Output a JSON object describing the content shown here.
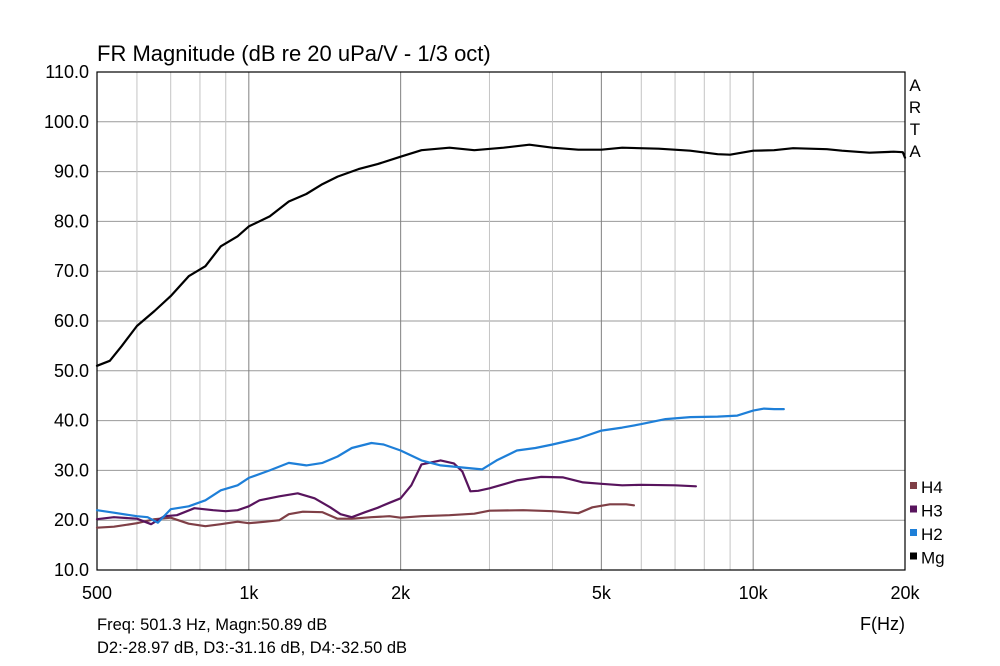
{
  "chart_data": {
    "type": "line",
    "title": "FR Magnitude (dB re 20 uPa/V - 1/3 oct)",
    "xlabel": "F(Hz)",
    "ylabel": "",
    "x_scale": "log",
    "xlim": [
      500,
      20000
    ],
    "ylim": [
      10,
      110
    ],
    "grid": true,
    "legend_position": "right-bottom",
    "brand_letters": [
      "A",
      "R",
      "T",
      "A"
    ],
    "x_ticks": [
      {
        "value": 500,
        "label": "500"
      },
      {
        "value": 1000,
        "label": "1k"
      },
      {
        "value": 2000,
        "label": "2k"
      },
      {
        "value": 5000,
        "label": "5k"
      },
      {
        "value": 10000,
        "label": "10k"
      },
      {
        "value": 20000,
        "label": "20k"
      }
    ],
    "y_ticks": [
      {
        "value": 110,
        "label": "110.0"
      },
      {
        "value": 100,
        "label": "100.0"
      },
      {
        "value": 90,
        "label": "90.0"
      },
      {
        "value": 80,
        "label": "80.0"
      },
      {
        "value": 70,
        "label": "70.0"
      },
      {
        "value": 60,
        "label": "60.0"
      },
      {
        "value": 50,
        "label": "50.0"
      },
      {
        "value": 40,
        "label": "40.0"
      },
      {
        "value": 30,
        "label": "30.0"
      },
      {
        "value": 20,
        "label": "20.0"
      },
      {
        "value": 10,
        "label": "10.0"
      }
    ],
    "series": [
      {
        "name": "Mg",
        "color": "#000000",
        "points": [
          [
            500,
            51
          ],
          [
            530,
            52
          ],
          [
            560,
            55
          ],
          [
            600,
            59
          ],
          [
            650,
            62
          ],
          [
            700,
            65
          ],
          [
            760,
            69
          ],
          [
            820,
            71
          ],
          [
            880,
            75
          ],
          [
            950,
            77
          ],
          [
            1000,
            79
          ],
          [
            1100,
            81
          ],
          [
            1200,
            84
          ],
          [
            1300,
            85.5
          ],
          [
            1400,
            87.5
          ],
          [
            1500,
            89
          ],
          [
            1650,
            90.5
          ],
          [
            1800,
            91.5
          ],
          [
            2000,
            93
          ],
          [
            2200,
            94.3
          ],
          [
            2500,
            94.8
          ],
          [
            2800,
            94.3
          ],
          [
            3200,
            94.8
          ],
          [
            3600,
            95.4
          ],
          [
            4000,
            94.8
          ],
          [
            4500,
            94.4
          ],
          [
            5000,
            94.4
          ],
          [
            5500,
            94.8
          ],
          [
            6500,
            94.6
          ],
          [
            7500,
            94.2
          ],
          [
            8500,
            93.5
          ],
          [
            9000,
            93.4
          ],
          [
            10000,
            94.2
          ],
          [
            11000,
            94.3
          ],
          [
            12000,
            94.7
          ],
          [
            14000,
            94.5
          ],
          [
            15000,
            94.2
          ],
          [
            17000,
            93.8
          ],
          [
            19000,
            94
          ],
          [
            19800,
            93.9
          ],
          [
            20000,
            92.8
          ]
        ]
      },
      {
        "name": "H2",
        "color": "#1e7fd8",
        "points": [
          [
            500,
            22
          ],
          [
            540,
            21.5
          ],
          [
            600,
            20.8
          ],
          [
            630,
            20.6
          ],
          [
            660,
            19.5
          ],
          [
            700,
            22.2
          ],
          [
            760,
            22.8
          ],
          [
            820,
            24
          ],
          [
            880,
            26
          ],
          [
            950,
            27
          ],
          [
            1000,
            28.5
          ],
          [
            1100,
            30
          ],
          [
            1200,
            31.5
          ],
          [
            1300,
            31
          ],
          [
            1400,
            31.5
          ],
          [
            1500,
            32.8
          ],
          [
            1600,
            34.5
          ],
          [
            1750,
            35.5
          ],
          [
            1850,
            35.2
          ],
          [
            2000,
            34
          ],
          [
            2200,
            32
          ],
          [
            2400,
            31
          ],
          [
            2700,
            30.5
          ],
          [
            2900,
            30.2
          ],
          [
            3100,
            32
          ],
          [
            3400,
            34
          ],
          [
            3700,
            34.5
          ],
          [
            4000,
            35.2
          ],
          [
            4500,
            36.4
          ],
          [
            5000,
            38
          ],
          [
            5500,
            38.6
          ],
          [
            6000,
            39.3
          ],
          [
            6700,
            40.3
          ],
          [
            7500,
            40.7
          ],
          [
            8500,
            40.8
          ],
          [
            9300,
            41
          ],
          [
            10000,
            42
          ],
          [
            10500,
            42.4
          ],
          [
            11000,
            42.3
          ],
          [
            11500,
            42.3
          ]
        ]
      },
      {
        "name": "H3",
        "color": "#58145d",
        "points": [
          [
            500,
            20.2
          ],
          [
            540,
            20.6
          ],
          [
            600,
            20.3
          ],
          [
            640,
            19.2
          ],
          [
            680,
            20.8
          ],
          [
            720,
            21
          ],
          [
            780,
            22.4
          ],
          [
            850,
            22
          ],
          [
            900,
            21.8
          ],
          [
            950,
            22
          ],
          [
            1000,
            22.8
          ],
          [
            1050,
            24
          ],
          [
            1150,
            24.8
          ],
          [
            1250,
            25.4
          ],
          [
            1350,
            24.4
          ],
          [
            1450,
            22.6
          ],
          [
            1520,
            21.2
          ],
          [
            1600,
            20.6
          ],
          [
            1700,
            21.6
          ],
          [
            1800,
            22.5
          ],
          [
            1900,
            23.5
          ],
          [
            2000,
            24.4
          ],
          [
            2100,
            27
          ],
          [
            2200,
            31.2
          ],
          [
            2400,
            32
          ],
          [
            2550,
            31.4
          ],
          [
            2650,
            29.8
          ],
          [
            2750,
            25.8
          ],
          [
            2850,
            25.9
          ],
          [
            3000,
            26.4
          ],
          [
            3200,
            27.2
          ],
          [
            3400,
            28
          ],
          [
            3800,
            28.7
          ],
          [
            4200,
            28.6
          ],
          [
            4600,
            27.6
          ],
          [
            5000,
            27.3
          ],
          [
            5500,
            27
          ],
          [
            6000,
            27.1
          ],
          [
            7000,
            27
          ],
          [
            7700,
            26.8
          ]
        ]
      },
      {
        "name": "H4",
        "color": "#7f3f46",
        "points": [
          [
            500,
            18.5
          ],
          [
            540,
            18.7
          ],
          [
            600,
            19.4
          ],
          [
            650,
            20.2
          ],
          [
            700,
            20.5
          ],
          [
            760,
            19.3
          ],
          [
            820,
            18.8
          ],
          [
            880,
            19.2
          ],
          [
            950,
            19.7
          ],
          [
            1000,
            19.4
          ],
          [
            1080,
            19.7
          ],
          [
            1150,
            20
          ],
          [
            1200,
            21.2
          ],
          [
            1280,
            21.7
          ],
          [
            1400,
            21.6
          ],
          [
            1500,
            20.3
          ],
          [
            1600,
            20.3
          ],
          [
            1750,
            20.6
          ],
          [
            1900,
            20.8
          ],
          [
            2000,
            20.5
          ],
          [
            2200,
            20.8
          ],
          [
            2500,
            21
          ],
          [
            2800,
            21.3
          ],
          [
            3000,
            21.9
          ],
          [
            3500,
            22
          ],
          [
            4000,
            21.8
          ],
          [
            4500,
            21.4
          ],
          [
            4800,
            22.6
          ],
          [
            5200,
            23.2
          ],
          [
            5600,
            23.2
          ],
          [
            5800,
            23
          ]
        ]
      }
    ],
    "legend": [
      {
        "name": "H4",
        "color": "#7f3f46"
      },
      {
        "name": "H3",
        "color": "#58145d"
      },
      {
        "name": "H2",
        "color": "#1e7fd8"
      },
      {
        "name": "Mg",
        "color": "#000000"
      }
    ],
    "readout": {
      "line1": "Freq: 501.3 Hz, Magn:50.89 dB",
      "line2": "D2:-28.97 dB, D3:-31.16 dB, D4:-32.50 dB"
    }
  }
}
